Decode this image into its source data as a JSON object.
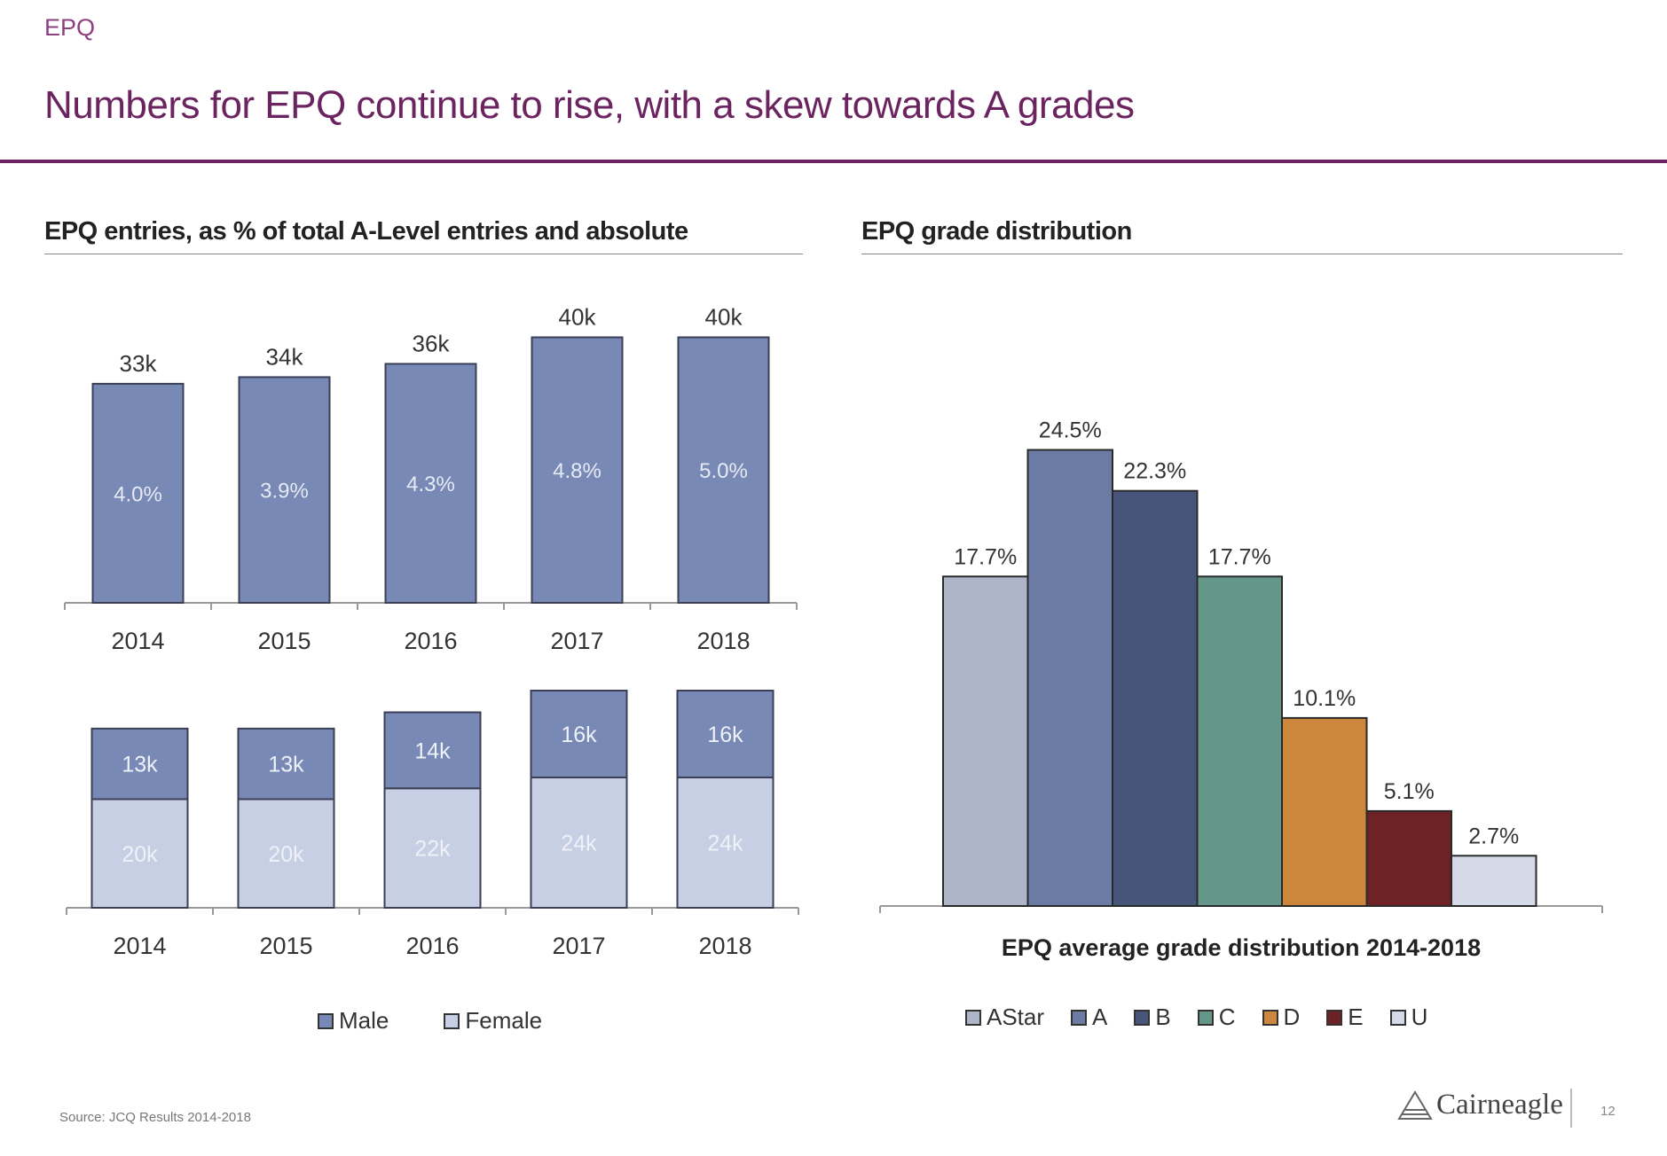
{
  "header": {
    "section_tag": "EPQ",
    "title": "Numbers for EPQ continue to rise, with a skew towards A grades"
  },
  "left_panel": {
    "title": "EPQ entries, as % of total A-Level entries and absolute"
  },
  "right_panel": {
    "title": "EPQ grade distribution"
  },
  "chart_data": [
    {
      "type": "bar",
      "categories": [
        "2014",
        "2015",
        "2016",
        "2017",
        "2018"
      ],
      "values": [
        33,
        34,
        36,
        40,
        40
      ],
      "value_labels": [
        "33k",
        "34k",
        "36k",
        "40k",
        "40k"
      ],
      "inner_labels": [
        "4.0%",
        "3.9%",
        "4.3%",
        "4.8%",
        "5.0%"
      ],
      "ylim": [
        0,
        41
      ],
      "title": "",
      "xlabel": "",
      "ylabel": "",
      "grid": false,
      "bar_color": "#7889b6"
    },
    {
      "type": "bar",
      "stacked": true,
      "categories": [
        "2014",
        "2015",
        "2016",
        "2017",
        "2018"
      ],
      "series": [
        {
          "name": "Female",
          "values": [
            20,
            20,
            22,
            24,
            24
          ],
          "labels": [
            "20k",
            "20k",
            "22k",
            "24k",
            "24k"
          ],
          "color": "#c6cfe3"
        },
        {
          "name": "Male",
          "values": [
            13,
            13,
            14,
            16,
            16
          ],
          "labels": [
            "13k",
            "13k",
            "14k",
            "16k",
            "16k"
          ],
          "color": "#7889b6"
        }
      ],
      "ylim": [
        0,
        40
      ],
      "legend": [
        "Male",
        "Female"
      ],
      "legend_position": "bottom",
      "grid": false
    },
    {
      "type": "bar",
      "categories": [
        "AStar",
        "A",
        "B",
        "C",
        "D",
        "E",
        "U"
      ],
      "values": [
        17.7,
        24.5,
        22.3,
        17.7,
        10.1,
        5.1,
        2.7
      ],
      "value_labels": [
        "17.7%",
        "24.5%",
        "22.3%",
        "17.7%",
        "10.1%",
        "5.1%",
        "2.7%"
      ],
      "colors": [
        "#afb5c9",
        "#6c7ba3",
        "#465579",
        "#64968a",
        "#cd873d",
        "#6e2226",
        "#d4dae8"
      ],
      "xlabel": "EPQ average grade distribution 2014-2018",
      "ylim": [
        0,
        25
      ],
      "legend_position": "bottom",
      "grid": false
    }
  ],
  "footer": {
    "source": "Source: JCQ Results 2014-2018",
    "logo_text": "Cairneagle",
    "page_number": "12"
  }
}
